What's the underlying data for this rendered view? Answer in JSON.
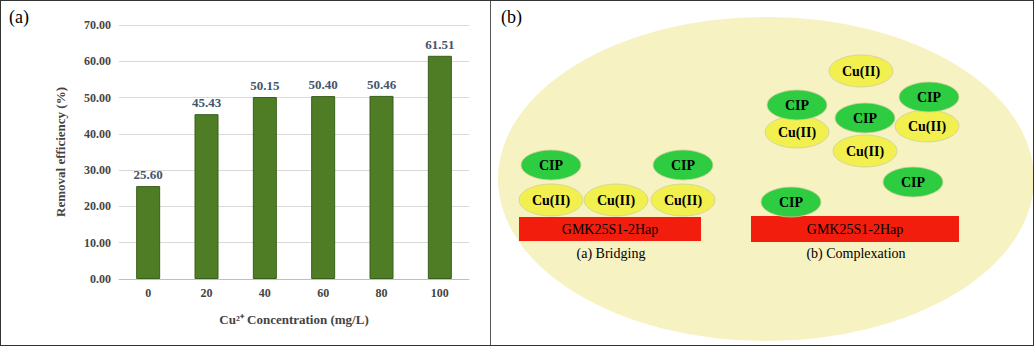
{
  "panel_labels": [
    "(a)",
    "(b)"
  ],
  "chart_data": {
    "type": "bar",
    "x_label": "Cu²⁺ Concentration (mg/L)",
    "y_label": "Removal efficiency (%)",
    "categories": [
      "0",
      "20",
      "40",
      "60",
      "80",
      "100"
    ],
    "values": [
      25.6,
      45.43,
      50.15,
      50.4,
      50.46,
      61.51
    ],
    "value_labels": [
      "25.60",
      "45.43",
      "50.15",
      "50.40",
      "50.46",
      "61.51"
    ],
    "color": "#4f7d26",
    "ylim": [
      0,
      70
    ],
    "yticks": [
      {
        "value": 0,
        "label": "0.00"
      },
      {
        "value": 10,
        "label": "10.00"
      },
      {
        "value": 20,
        "label": "20.00"
      },
      {
        "value": 30,
        "label": "30.00"
      },
      {
        "value": 40,
        "label": "40.00"
      },
      {
        "value": 50,
        "label": "50.00"
      },
      {
        "value": 60,
        "label": "60.00"
      },
      {
        "value": 70,
        "label": "70.00"
      }
    ],
    "grid": true,
    "data_labels": true
  },
  "diagram": {
    "bridging": {
      "caption": "(a) Bridging",
      "substrate": "GMK25S1-2Hap",
      "metal": [
        "Cu(II)",
        "Cu(II)",
        "Cu(II)"
      ],
      "drug": [
        "CIP",
        "CIP"
      ]
    },
    "complexation": {
      "caption": "(b) Complexation",
      "substrate": "GMK25S1-2Hap",
      "metal": [
        "Cu(II)",
        "Cu(II)",
        "Cu(II)",
        "Cu(II)"
      ],
      "drug": [
        "CIP",
        "CIP",
        "CIP",
        "CIP",
        "CIP"
      ]
    }
  }
}
